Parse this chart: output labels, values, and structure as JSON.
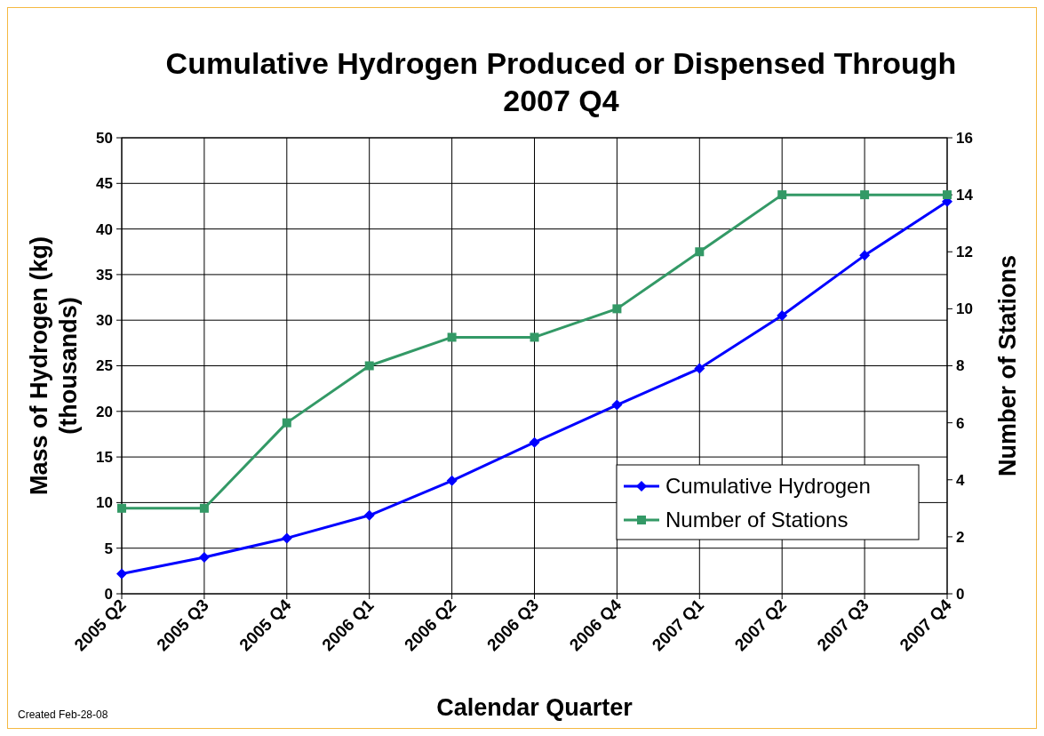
{
  "chart_data": {
    "type": "line",
    "title": "Cumulative Hydrogen Produced or Dispensed Through 2007 Q4",
    "xlabel": "Calendar Quarter",
    "ylabel": "Mass of Hydrogen (kg) (thousands)",
    "y2label": "Number of Stations",
    "categories": [
      "2005 Q2",
      "2005 Q3",
      "2005 Q4",
      "2006 Q1",
      "2006 Q2",
      "2006 Q3",
      "2006 Q4",
      "2007 Q1",
      "2007 Q2",
      "2007 Q3",
      "2007 Q4"
    ],
    "series": [
      {
        "name": "Cumulative Hydrogen",
        "color": "#0000ff",
        "marker": "diamond",
        "values": [
          2.2,
          4.0,
          6.1,
          8.6,
          12.4,
          16.6,
          20.7,
          24.7,
          30.5,
          37.1,
          43.0
        ]
      },
      {
        "name": "Number of Stations",
        "color": "#339966",
        "marker": "square",
        "axis": "y2",
        "values": [
          3,
          3,
          6,
          8,
          9,
          9,
          10,
          12,
          14,
          14,
          14
        ]
      }
    ],
    "ylim": [
      0,
      50
    ],
    "yticks": [
      0,
      5,
      10,
      15,
      20,
      25,
      30,
      35,
      40,
      45,
      50
    ],
    "y2lim": [
      0,
      16
    ],
    "y2ticks": [
      0,
      2,
      4,
      6,
      8,
      10,
      12,
      14,
      16
    ],
    "grid": true,
    "legend": "bottom right",
    "annotations": [
      "Created Feb-28-08"
    ]
  }
}
